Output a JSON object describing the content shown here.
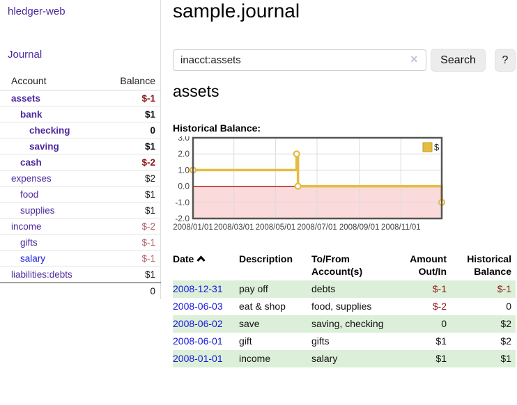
{
  "app": {
    "brand": "hledger-web",
    "nav_journal": "Journal"
  },
  "colors": {
    "accent_purple": "#4e2a9e",
    "link_blue": "#1616dd",
    "negative_strong": "#8e1515",
    "negative_muted": "#b3606b",
    "register_negative": "#8b1a1a",
    "row_green": "#dcefd8",
    "chart_line": "#e5bc41",
    "chart_negative_region": "#fadada",
    "chart_zero_line": "#990000"
  },
  "accounts": {
    "header": {
      "account": "Account",
      "balance": "Balance"
    },
    "rows": [
      {
        "name": "assets",
        "indent": 0,
        "bold": true,
        "balance": "$-1",
        "balance_style": "neg-strong"
      },
      {
        "name": "bank",
        "indent": 1,
        "bold": true,
        "balance": "$1",
        "balance_style": ""
      },
      {
        "name": "checking",
        "indent": 2,
        "bold": true,
        "balance": "0",
        "balance_style": ""
      },
      {
        "name": "saving",
        "indent": 2,
        "bold": true,
        "balance": "$1",
        "balance_style": ""
      },
      {
        "name": "cash",
        "indent": 1,
        "bold": true,
        "balance": "$-2",
        "balance_style": "neg-strong"
      },
      {
        "name": "expenses",
        "indent": 0,
        "bold": false,
        "balance": "$2",
        "balance_style": ""
      },
      {
        "name": "food",
        "indent": 1,
        "bold": false,
        "balance": "$1",
        "balance_style": ""
      },
      {
        "name": "supplies",
        "indent": 1,
        "bold": false,
        "balance": "$1",
        "balance_style": ""
      },
      {
        "name": "income",
        "indent": 0,
        "bold": false,
        "balance": "$-2",
        "balance_style": "neg-muted"
      },
      {
        "name": "gifts",
        "indent": 1,
        "bold": false,
        "balance": "$-1",
        "balance_style": "neg-muted"
      },
      {
        "name": "salary",
        "indent": 1,
        "bold": false,
        "link_color": "blue",
        "balance": "$-1",
        "balance_style": "neg-muted"
      },
      {
        "name": "liabilities:debts",
        "indent": 0,
        "bold": false,
        "balance": "$1",
        "balance_style": ""
      }
    ],
    "total": "0"
  },
  "header": {
    "title": "sample.journal"
  },
  "search": {
    "value": "inacct:assets",
    "clear_icon": "×",
    "button_label": "Search",
    "help_label": "?"
  },
  "main": {
    "account_heading": "assets",
    "chart_label": "Historical Balance:"
  },
  "chart_data": {
    "type": "line",
    "title": "Historical Balance",
    "step": true,
    "series": [
      {
        "name": "$",
        "points": [
          {
            "x": "2008-01-01",
            "y": 1
          },
          {
            "x": "2008-06-01",
            "y": 2
          },
          {
            "x": "2008-06-03",
            "y": 0
          },
          {
            "x": "2008-12-31",
            "y": -1
          }
        ]
      }
    ],
    "x_ticks": [
      "2008/01/01",
      "2008/03/01",
      "2008/05/01",
      "2008/07/01",
      "2008/09/01",
      "2008/11/01"
    ],
    "y_ticks": [
      3.0,
      2.0,
      1.0,
      0.0,
      -1.0,
      -2.0
    ],
    "ylim": [
      -2,
      3
    ],
    "grid": true,
    "legend": {
      "label": "$",
      "position": "top-right"
    }
  },
  "register": {
    "columns": [
      {
        "line1": "Date",
        "sort": true
      },
      {
        "line1": "Description"
      },
      {
        "line1": "To/From",
        "line2": "Account(s)"
      },
      {
        "line1": "Amount",
        "line2": "Out/In",
        "align": "right"
      },
      {
        "line1": "Historical",
        "line2": "Balance",
        "align": "right"
      }
    ],
    "rows": [
      {
        "date": "2008-12-31",
        "description": "pay off",
        "account": "debts",
        "amount": "$-1",
        "amount_neg": true,
        "balance": "$-1",
        "balance_neg": true,
        "shaded": true
      },
      {
        "date": "2008-06-03",
        "description": "eat & shop",
        "account": "food, supplies",
        "amount": "$-2",
        "amount_neg": true,
        "balance": "0",
        "balance_neg": false,
        "shaded": false
      },
      {
        "date": "2008-06-02",
        "description": "save",
        "account": "saving, checking",
        "amount": "0",
        "amount_neg": false,
        "balance": "$2",
        "balance_neg": false,
        "shaded": true
      },
      {
        "date": "2008-06-01",
        "description": "gift",
        "account": "gifts",
        "amount": "$1",
        "amount_neg": false,
        "balance": "$2",
        "balance_neg": false,
        "shaded": false
      },
      {
        "date": "2008-01-01",
        "description": "income",
        "account": "salary",
        "amount": "$1",
        "amount_neg": false,
        "balance": "$1",
        "balance_neg": false,
        "shaded": true
      }
    ]
  }
}
